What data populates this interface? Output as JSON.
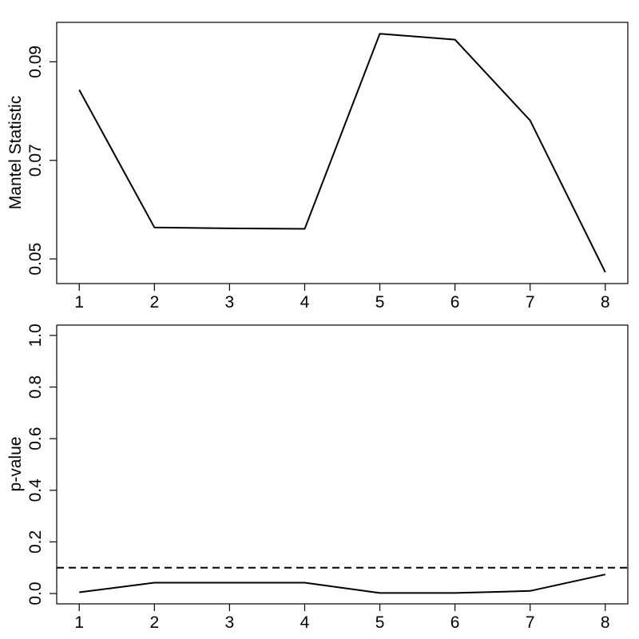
{
  "chart_data": [
    {
      "type": "line",
      "title": "",
      "xlabel": "",
      "ylabel": "Mantel Statistic",
      "x": [
        1,
        2,
        3,
        4,
        5,
        6,
        7,
        8
      ],
      "series": [
        {
          "values": [
            0.0843,
            0.0564,
            0.0562,
            0.0561,
            0.0957,
            0.0945,
            0.0781,
            0.0473
          ],
          "line_style": "solid",
          "color": "#000000"
        }
      ],
      "xlim": [
        0.7,
        8.3
      ],
      "ylim": [
        0.045,
        0.098
      ],
      "xticks": [
        "1",
        "2",
        "3",
        "4",
        "5",
        "6",
        "7",
        "8"
      ],
      "yticks": [
        "0.05",
        "0.07",
        "0.09"
      ],
      "grid": false
    },
    {
      "type": "line",
      "title": "",
      "xlabel": "",
      "ylabel": "p-value",
      "x": [
        1,
        2,
        3,
        4,
        5,
        6,
        7,
        8
      ],
      "series": [
        {
          "values": [
            0.005,
            0.042,
            0.042,
            0.042,
            0.002,
            0.002,
            0.01,
            0.074
          ],
          "line_style": "solid",
          "color": "#000000"
        }
      ],
      "reference_line": {
        "y": 0.1,
        "line_style": "dashed"
      },
      "xlim": [
        0.7,
        8.3
      ],
      "ylim": [
        -0.04,
        1.04
      ],
      "xticks": [
        "1",
        "2",
        "3",
        "4",
        "5",
        "6",
        "7",
        "8"
      ],
      "yticks": [
        "0.0",
        "0.2",
        "0.4",
        "0.6",
        "0.8",
        "1.0"
      ],
      "grid": false
    }
  ]
}
